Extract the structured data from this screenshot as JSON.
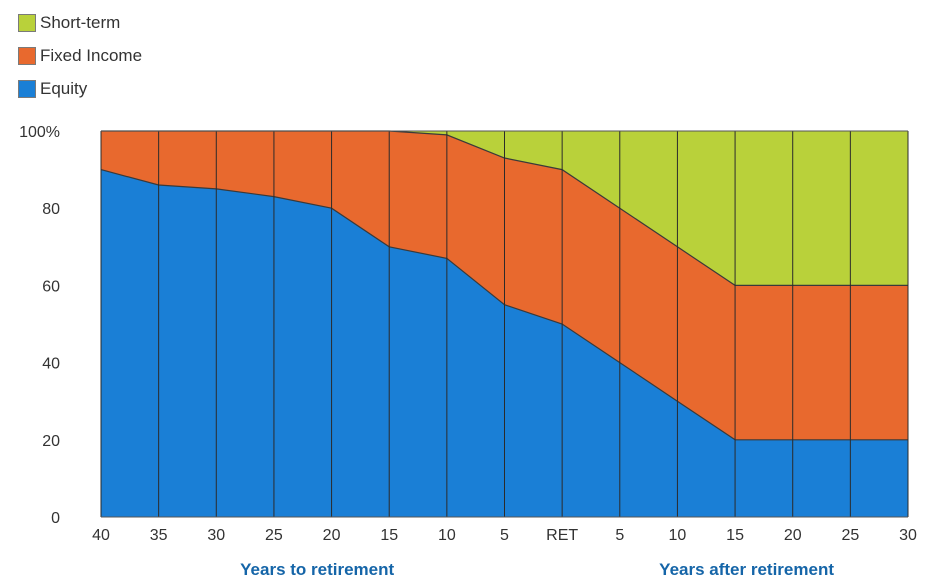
{
  "chart_data": {
    "type": "area",
    "stacked": true,
    "categories": [
      "40",
      "35",
      "30",
      "25",
      "20",
      "15",
      "10",
      "5",
      "RET",
      "5",
      "10",
      "15",
      "20",
      "25",
      "30"
    ],
    "x_group_labels": [
      "Years to retirement",
      "Years after retirement"
    ],
    "series": [
      {
        "name": "Equity",
        "color": "#1a7fd6",
        "values": [
          90,
          86,
          85,
          83,
          80,
          70,
          67,
          55,
          50,
          40,
          30,
          20,
          20,
          20,
          20
        ]
      },
      {
        "name": "Fixed Income",
        "color": "#e8692e",
        "values": [
          10,
          14,
          15,
          17,
          20,
          30,
          32,
          38,
          40,
          40,
          40,
          40,
          40,
          40,
          40
        ]
      },
      {
        "name": "Short-term",
        "color": "#b9d13a",
        "values": [
          0,
          0,
          0,
          0,
          0,
          0,
          1,
          7,
          10,
          20,
          30,
          40,
          40,
          40,
          40
        ]
      }
    ],
    "legend_order": [
      "Short-term",
      "Fixed Income",
      "Equity"
    ],
    "y_ticks": [
      "0",
      "20",
      "40",
      "60",
      "80",
      "100%"
    ],
    "ylim": [
      0,
      100
    ],
    "legend_position": "top-left",
    "grid": "vertical"
  }
}
